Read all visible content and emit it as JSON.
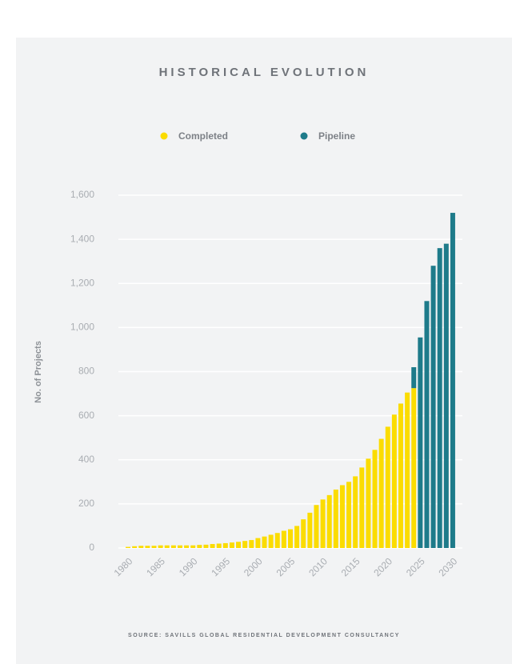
{
  "chart_data": {
    "type": "stacked_bar",
    "title": "HISTORICAL EVOLUTION",
    "y_label": "No. of Projects",
    "source": "SOURCE: SAVILLS GLOBAL RESIDENTIAL DEVELOPMENT CONSULTANCY",
    "categories": [
      "1980",
      null,
      null,
      null,
      null,
      "1985",
      null,
      null,
      null,
      null,
      "1990",
      null,
      null,
      null,
      null,
      "1995",
      null,
      null,
      null,
      null,
      "2000",
      null,
      null,
      null,
      null,
      "2005",
      null,
      null,
      null,
      null,
      "2010",
      null,
      null,
      null,
      null,
      "2015",
      null,
      null,
      null,
      null,
      "2020",
      null,
      null,
      null,
      null,
      "2025",
      null,
      null,
      null,
      null,
      "2030"
    ],
    "series": [
      {
        "name": "Completed",
        "color": "#fbdc00",
        "values": [
          5,
          8,
          10,
          10,
          10,
          12,
          12,
          12,
          12,
          12,
          12,
          14,
          15,
          18,
          20,
          22,
          25,
          28,
          32,
          36,
          45,
          52,
          60,
          68,
          78,
          85,
          100,
          130,
          160,
          195,
          220,
          240,
          265,
          285,
          300,
          325,
          365,
          405,
          445,
          495,
          550,
          605,
          655,
          705,
          725,
          null,
          null,
          null,
          null,
          null,
          null
        ]
      },
      {
        "name": "Pipeline",
        "color": "#1e7b8a",
        "values": [
          null,
          null,
          null,
          null,
          null,
          null,
          null,
          null,
          null,
          null,
          null,
          null,
          null,
          null,
          null,
          null,
          null,
          null,
          null,
          null,
          null,
          null,
          null,
          null,
          null,
          null,
          null,
          null,
          null,
          null,
          null,
          null,
          null,
          null,
          null,
          null,
          null,
          null,
          null,
          null,
          null,
          null,
          null,
          null,
          95,
          955,
          1120,
          1280,
          1360,
          1380,
          1520
        ]
      }
    ],
    "ylim": [
      0,
      1600
    ],
    "yticks": [
      0,
      200,
      400,
      600,
      800,
      {
        "value": 1000,
        "label": "1,000"
      },
      {
        "value": 1200,
        "label": "1,200"
      },
      {
        "value": 1400,
        "label": "1,400"
      },
      {
        "value": 1600,
        "label": "1,600"
      }
    ],
    "grid": true,
    "legend": "top"
  }
}
